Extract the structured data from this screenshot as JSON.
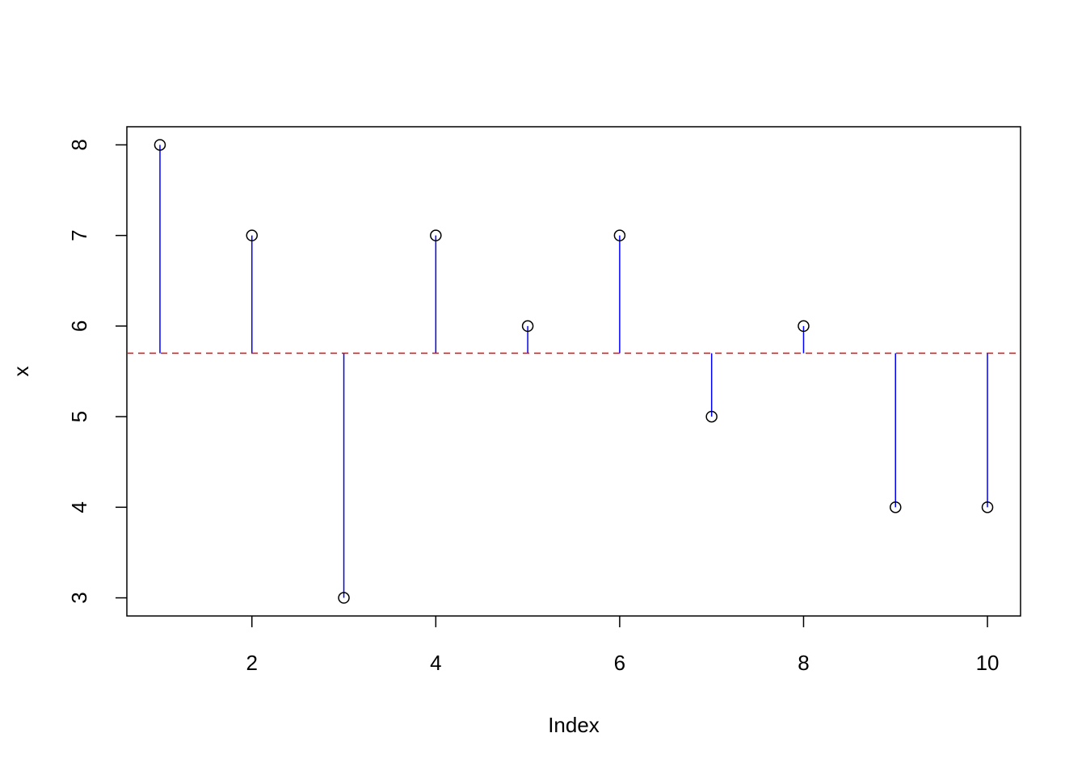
{
  "chart_data": {
    "type": "scatter",
    "x_label": "Index",
    "y_label": "x",
    "x": [
      1,
      2,
      3,
      4,
      5,
      6,
      7,
      8,
      9,
      10
    ],
    "values": [
      8,
      7,
      3,
      7,
      6,
      7,
      5,
      6,
      4,
      4
    ],
    "color": "#000000",
    "stem_color": "#0000ff",
    "hline": {
      "value": 5.7,
      "color": "#ff0000",
      "dashed": true
    },
    "xlim": [
      0.64,
      10.36
    ],
    "xticks": [
      2,
      4,
      6,
      8,
      10
    ],
    "ylim": [
      2.8,
      8.2
    ],
    "yticks": [
      3,
      4,
      5,
      6,
      7,
      8
    ]
  }
}
